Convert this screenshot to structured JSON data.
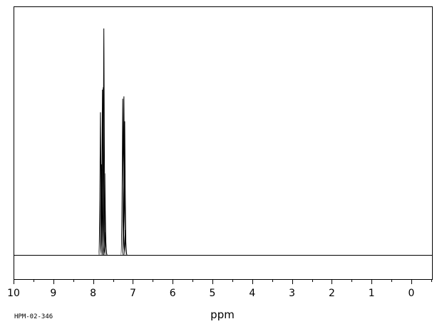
{
  "chart_data": {
    "type": "line",
    "title": "",
    "xlabel": "ppm",
    "ylabel": "",
    "xlim": [
      10,
      -0.55
    ],
    "x_reversed": true,
    "grid": false,
    "ticks": [
      10,
      9,
      8,
      7,
      6,
      5,
      4,
      3,
      2,
      1,
      0
    ],
    "tick_labels": [
      "10",
      "9",
      "8",
      "7",
      "6",
      "5",
      "4",
      "3",
      "2",
      "1",
      "0"
    ],
    "minor_tick_step": 0.5,
    "series": [
      {
        "peaks": [
          {
            "ppm": 7.815,
            "intensity": 0.63
          },
          {
            "ppm": 7.795,
            "intensity": 0.4
          },
          {
            "ppm": 7.765,
            "intensity": 0.73
          },
          {
            "ppm": 7.745,
            "intensity": 0.74
          },
          {
            "ppm": 7.73,
            "intensity": 1.0
          },
          {
            "ppm": 7.705,
            "intensity": 0.36
          },
          {
            "ppm": 7.69,
            "intensity": 0.1
          },
          {
            "ppm": 7.255,
            "intensity": 0.69
          },
          {
            "ppm": 7.225,
            "intensity": 0.7
          },
          {
            "ppm": 7.205,
            "intensity": 0.59
          },
          {
            "ppm": 7.19,
            "intensity": 0.11
          }
        ]
      }
    ]
  },
  "footer_code": "HPM-02-346"
}
